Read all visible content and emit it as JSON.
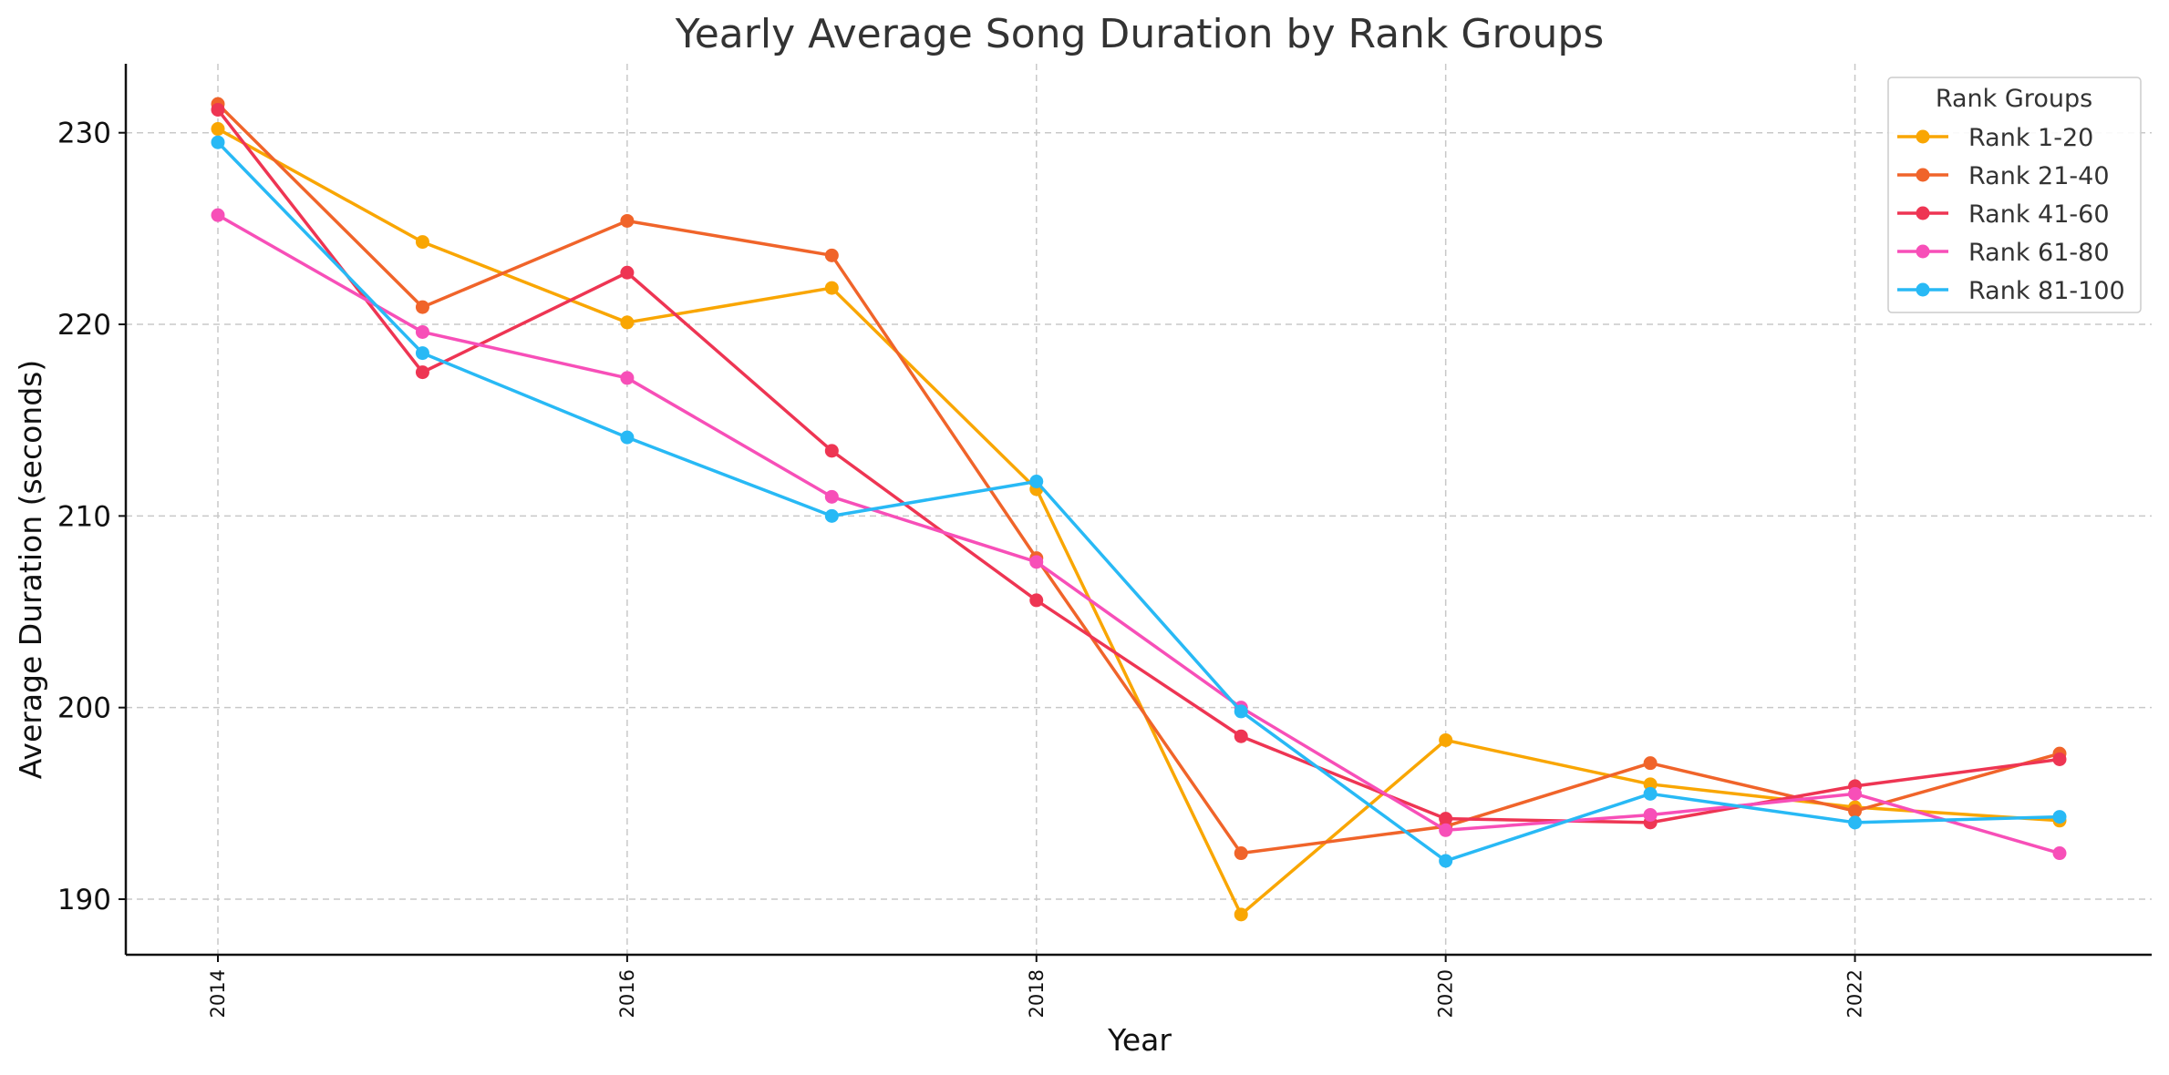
{
  "chart_data": {
    "type": "line",
    "title": "Yearly Average Song Duration by Rank Groups",
    "xlabel": "Year",
    "ylabel": "Average Duration (seconds)",
    "x": [
      2014,
      2015,
      2016,
      2017,
      2018,
      2019,
      2020,
      2021,
      2022,
      2023
    ],
    "xlim": [
      2013.55,
      2023.45
    ],
    "ylim": [
      187.1,
      233.6
    ],
    "xticks": [
      2014,
      2016,
      2018,
      2020,
      2022
    ],
    "xtick_labels": [
      "2014",
      "2016",
      "2018",
      "2020",
      "2022"
    ],
    "yticks": [
      190,
      200,
      210,
      220,
      230
    ],
    "ytick_labels": [
      "190",
      "200",
      "210",
      "220",
      "230"
    ],
    "grid": true,
    "legend": {
      "title": "Rank Groups",
      "placement": "top-right"
    },
    "series": [
      {
        "name": "Rank 1-20",
        "color": "#f9a602",
        "values": [
          230.2,
          224.3,
          220.1,
          221.9,
          211.4,
          189.2,
          198.3,
          196.0,
          194.8,
          194.1
        ]
      },
      {
        "name": "Rank 21-40",
        "color": "#f0642a",
        "values": [
          231.5,
          220.9,
          225.4,
          223.6,
          207.8,
          192.4,
          193.8,
          197.1,
          194.6,
          197.6
        ]
      },
      {
        "name": "Rank 41-60",
        "color": "#ee3553",
        "values": [
          231.2,
          217.5,
          222.7,
          213.4,
          205.6,
          198.5,
          194.2,
          194.0,
          195.9,
          197.3
        ]
      },
      {
        "name": "Rank 61-80",
        "color": "#f74fb8",
        "values": [
          225.7,
          219.6,
          217.2,
          211.0,
          207.6,
          200.0,
          193.6,
          194.4,
          195.5,
          192.4
        ]
      },
      {
        "name": "Rank 81-100",
        "color": "#28b9f5",
        "values": [
          229.5,
          218.5,
          214.1,
          210.0,
          211.8,
          199.8,
          192.0,
          195.5,
          194.0,
          194.3
        ]
      }
    ]
  }
}
